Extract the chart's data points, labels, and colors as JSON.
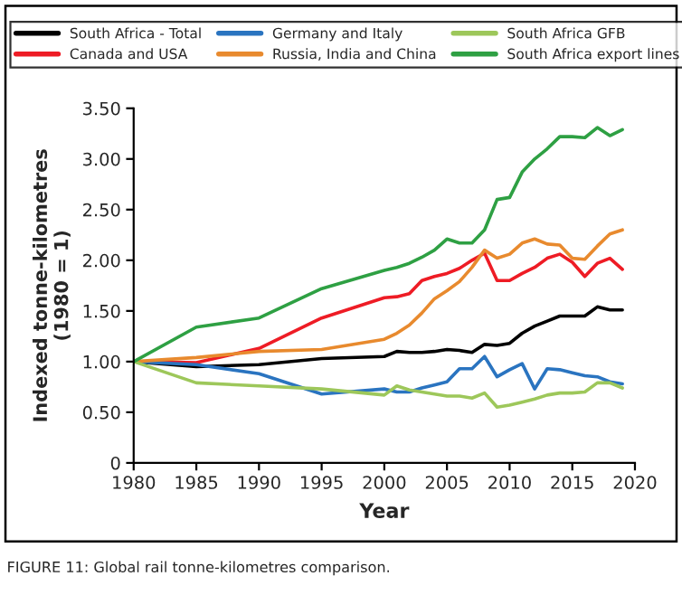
{
  "chart_data": {
    "type": "line",
    "xlabel": "Year",
    "ylabel": "Indexed tonne-kilometres\n(1980 = 1)",
    "annotations": [
      "FIGURE 11: Global rail tonne-kilometres comparison."
    ],
    "x": [
      1980,
      1985,
      1990,
      1995,
      2000,
      2001,
      2002,
      2003,
      2004,
      2005,
      2006,
      2007,
      2008,
      2009,
      2010,
      2011,
      2012,
      2013,
      2014,
      2015,
      2016,
      2017,
      2018,
      2019
    ],
    "series": [
      {
        "name": "South Africa - Total",
        "color": "#000000",
        "values": [
          1.0,
          0.95,
          0.97,
          1.03,
          1.05,
          1.1,
          1.09,
          1.09,
          1.1,
          1.12,
          1.11,
          1.09,
          1.17,
          1.16,
          1.18,
          1.28,
          1.35,
          1.4,
          1.45,
          1.45,
          1.45,
          1.54,
          1.51,
          1.51
        ]
      },
      {
        "name": "Canada and USA",
        "color": "#ee1c25",
        "values": [
          1.0,
          0.99,
          1.13,
          1.43,
          1.63,
          1.64,
          1.67,
          1.8,
          1.84,
          1.87,
          1.92,
          2.0,
          2.07,
          1.8,
          1.8,
          1.87,
          1.93,
          2.02,
          2.06,
          1.98,
          1.84,
          1.97,
          2.02,
          1.91
        ]
      },
      {
        "name": "Germany and Italy",
        "color": "#2a74c0",
        "values": [
          1.0,
          0.97,
          0.88,
          0.68,
          0.73,
          0.7,
          0.7,
          0.74,
          0.77,
          0.8,
          0.93,
          0.93,
          1.05,
          0.85,
          0.92,
          0.98,
          0.73,
          0.93,
          0.92,
          0.89,
          0.86,
          0.85,
          0.8,
          0.78
        ]
      },
      {
        "name": "Russia, India and China",
        "color": "#e88a2e",
        "values": [
          1.0,
          1.04,
          1.1,
          1.12,
          1.22,
          1.28,
          1.36,
          1.48,
          1.62,
          1.7,
          1.79,
          1.93,
          2.1,
          2.02,
          2.06,
          2.17,
          2.21,
          2.16,
          2.15,
          2.02,
          2.01,
          2.14,
          2.26,
          2.3
        ]
      },
      {
        "name": "South Africa GFB",
        "color": "#9dc75a",
        "values": [
          1.0,
          0.79,
          0.76,
          0.73,
          0.67,
          0.76,
          0.72,
          0.7,
          0.68,
          0.66,
          0.66,
          0.64,
          0.69,
          0.55,
          0.57,
          0.6,
          0.63,
          0.67,
          0.69,
          0.69,
          0.7,
          0.79,
          0.79,
          0.74
        ]
      },
      {
        "name": "South Africa export lines",
        "color": "#2ea043",
        "values": [
          1.0,
          1.34,
          1.43,
          1.72,
          1.9,
          1.93,
          1.97,
          2.03,
          2.1,
          2.21,
          2.17,
          2.17,
          2.3,
          2.6,
          2.62,
          2.87,
          3.0,
          3.1,
          3.22,
          3.22,
          3.21,
          3.31,
          3.23,
          3.29
        ]
      }
    ],
    "xlim": [
      1980,
      2020
    ],
    "xticks": [
      1980,
      1985,
      1990,
      1995,
      2000,
      2005,
      2010,
      2015,
      2020
    ],
    "ylim": [
      0,
      3.5
    ],
    "yticks": [
      0,
      {
        "value": 0.5,
        "label": "0.50"
      },
      {
        "value": 1,
        "label": "1.00"
      },
      {
        "value": 1.5,
        "label": "1.50"
      },
      {
        "value": 2,
        "label": "2.00"
      },
      {
        "value": 2.5,
        "label": "2.50"
      },
      {
        "value": 3,
        "label": "3.00"
      },
      {
        "value": 3.5,
        "label": "3.50"
      }
    ],
    "legend": "top",
    "marker": "none",
    "line_style": "solid"
  }
}
